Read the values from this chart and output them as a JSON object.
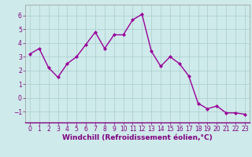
{
  "x": [
    0,
    1,
    2,
    3,
    4,
    5,
    6,
    7,
    8,
    9,
    10,
    11,
    12,
    13,
    14,
    15,
    16,
    17,
    18,
    19,
    20,
    21,
    22,
    23
  ],
  "y": [
    3.2,
    3.6,
    2.2,
    1.5,
    2.5,
    3.0,
    3.9,
    4.8,
    3.6,
    4.6,
    4.6,
    5.7,
    6.1,
    3.4,
    2.3,
    3.0,
    2.5,
    1.6,
    -0.4,
    -0.8,
    -0.6,
    -1.1,
    -1.1,
    -1.2
  ],
  "line_color": "#990099",
  "marker": "D",
  "marker_size": 2,
  "line_width": 1.0,
  "bg_color": "#ceeaea",
  "grid_color": "#aacccc",
  "xlabel": "Windchill (Refroidissement éolien,°C)",
  "xlabel_color": "#800080",
  "xlabel_fontsize": 6.5,
  "tick_color": "#800080",
  "tick_fontsize": 5.5,
  "ylim": [
    -1.8,
    6.8
  ],
  "xlim": [
    -0.5,
    23.5
  ],
  "yticks": [
    -1,
    0,
    1,
    2,
    3,
    4,
    5,
    6
  ],
  "xticks": [
    0,
    1,
    2,
    3,
    4,
    5,
    6,
    7,
    8,
    9,
    10,
    11,
    12,
    13,
    14,
    15,
    16,
    17,
    18,
    19,
    20,
    21,
    22,
    23
  ]
}
